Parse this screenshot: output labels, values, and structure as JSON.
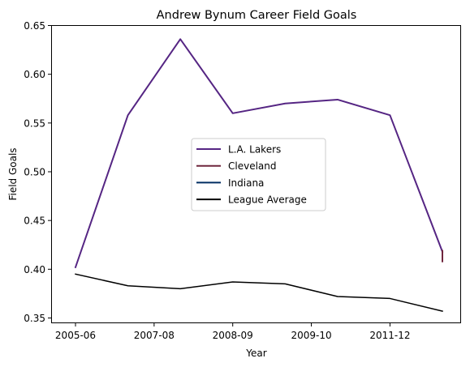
{
  "chart_data": {
    "type": "line",
    "title": "Andrew Bynum Career Field Goals",
    "xlabel": "Year",
    "ylabel": "Field Goals",
    "x_tick_labels": [
      "2005-06",
      "2007-08",
      "2008-09",
      "2009-10",
      "2011-12"
    ],
    "y_ticks": [
      0.35,
      0.4,
      0.45,
      0.5,
      0.55,
      0.6,
      0.65
    ],
    "ylim": [
      0.345,
      0.65
    ],
    "seasons_plotted": 8,
    "series": [
      {
        "name": "L.A. Lakers",
        "color": "#552583",
        "x_index": [
          0,
          1,
          2,
          3,
          4,
          5,
          6,
          7
        ],
        "values": [
          0.402,
          0.558,
          0.636,
          0.56,
          0.57,
          0.574,
          0.558,
          0.418
        ]
      },
      {
        "name": "Cleveland",
        "color": "#6F263D",
        "x_index": [
          7,
          7
        ],
        "values": [
          0.419,
          0.408
        ]
      },
      {
        "name": "Indiana",
        "color": "#002D62",
        "x_index": [
          7
        ],
        "values": [
          0.415
        ]
      },
      {
        "name": "League Average",
        "color": "#000000",
        "x_index": [
          0,
          1,
          2,
          3,
          4,
          5,
          6,
          7
        ],
        "values": [
          0.395,
          0.383,
          0.38,
          0.387,
          0.385,
          0.372,
          0.37,
          0.357
        ]
      }
    ],
    "legend_position": "center",
    "grid": false
  }
}
